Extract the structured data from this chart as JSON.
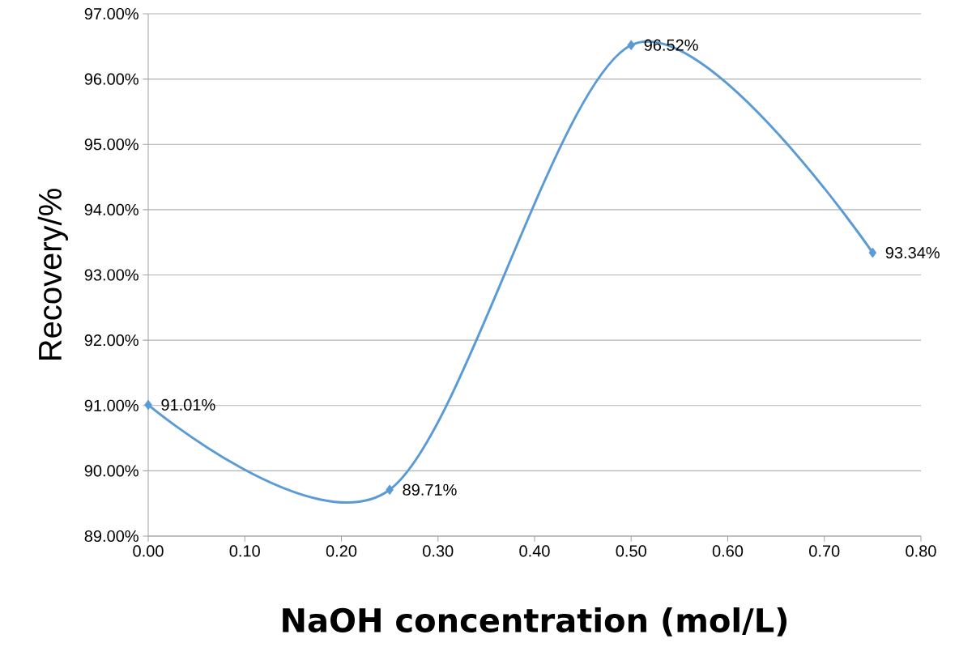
{
  "chart_data": {
    "type": "line",
    "xlabel": "NaOH concentration (mol/L)",
    "ylabel": "Recovery/%",
    "x": [
      0,
      0.25,
      0.5,
      0.75
    ],
    "series": [
      {
        "color": "#5b9bd5",
        "values": [
          91.01,
          89.71,
          96.52,
          93.34
        ],
        "value_labels": [
          "91.01%",
          "89.71%",
          "96.52%",
          "93.34%"
        ]
      }
    ],
    "marker": "diamond",
    "line_style": "solid",
    "grid": "y",
    "xlim": [
      0,
      0.8
    ],
    "xticks": [
      {
        "value": 0,
        "label": "0.00"
      },
      {
        "value": 0.1,
        "label": "0.10"
      },
      {
        "value": 0.2,
        "label": "0.20"
      },
      {
        "value": 0.3,
        "label": "0.30"
      },
      {
        "value": 0.4,
        "label": "0.40"
      },
      {
        "value": 0.5,
        "label": "0.50"
      },
      {
        "value": 0.6,
        "label": "0.60"
      },
      {
        "value": 0.7,
        "label": "0.70"
      },
      {
        "value": 0.8,
        "label": "0.80"
      }
    ],
    "ylim": [
      89,
      97
    ],
    "yticks": [
      {
        "value": 89,
        "label": "89.00%"
      },
      {
        "value": 90,
        "label": "90.00%"
      },
      {
        "value": 91,
        "label": "91.00%"
      },
      {
        "value": 92,
        "label": "92.00%"
      },
      {
        "value": 93,
        "label": "93.00%"
      },
      {
        "value": 94,
        "label": "94.00%"
      },
      {
        "value": 95,
        "label": "95.00%"
      },
      {
        "value": 96,
        "label": "96.00%"
      },
      {
        "value": 97,
        "label": "97.00%"
      }
    ]
  }
}
